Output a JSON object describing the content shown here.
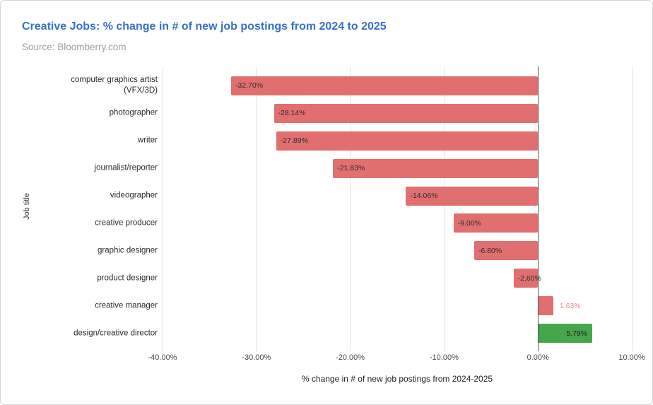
{
  "header": {
    "title": "Creative Jobs: % change in # of new job postings from 2024 to 2025",
    "source": "Source: Bloomberry.com"
  },
  "colors": {
    "title": "#3a70ca",
    "source": "#9e9e9e",
    "negative_bar": "#e26f6f",
    "positive_bar": "#46a64c",
    "gridline": "#e3e3e3",
    "zero_line": "#555555",
    "inside_label": "#2e2e2e",
    "outside_label": "#e78c8c"
  },
  "chart_data": {
    "type": "bar",
    "orientation": "horizontal",
    "title": "Creative Jobs: % change in # of new job postings from 2024 to 2025",
    "subtitle": "Source: Bloomberry.com",
    "categories": [
      "computer graphics artist\n(VFX/3D)",
      "photographer",
      "writer",
      "journalist/reporter",
      "videographer",
      "creative producer",
      "graphic designer",
      "product designer",
      "creative manager",
      "design/creative director"
    ],
    "values": [
      -32.7,
      -28.14,
      -27.89,
      -21.83,
      -14.06,
      -9.0,
      -6.8,
      -2.6,
      1.63,
      5.79
    ],
    "value_labels": [
      "-32.70%",
      "-28.14%",
      "-27.89%",
      "-21.83%",
      "-14.06%",
      "-9.00%",
      "-6.80%",
      "-2.60%",
      "1.63%",
      "5.79%"
    ],
    "bar_colors": [
      "#e26f6f",
      "#e26f6f",
      "#e26f6f",
      "#e26f6f",
      "#e26f6f",
      "#e26f6f",
      "#e26f6f",
      "#e26f6f",
      "#e26f6f",
      "#46a64c"
    ],
    "label_placements": [
      "inside-start",
      "inside-start",
      "inside-start",
      "inside-start",
      "inside-start",
      "inside-start",
      "inside-start",
      "inside-start",
      "outside-end",
      "inside-end"
    ],
    "label_colors": [
      "#2e2e2e",
      "#2e2e2e",
      "#2e2e2e",
      "#2e2e2e",
      "#2e2e2e",
      "#2e2e2e",
      "#2e2e2e",
      "#2e2e2e",
      "#e78c8c",
      "#1e1e1e"
    ],
    "xlabel": "% change in # of new job postings from 2024-2025",
    "ylabel": "Job title",
    "xlim": [
      -40,
      10
    ],
    "xticks": [
      -40,
      -30,
      -20,
      -10,
      0,
      10
    ],
    "xtick_labels": [
      "-40.00%",
      "-30.00%",
      "-20.00%",
      "-10.00%",
      "0.00%",
      "10.00%"
    ],
    "grid": true,
    "legend": "none",
    "gridline_color": "#e3e3e3",
    "zero_line_color": "#555555"
  }
}
